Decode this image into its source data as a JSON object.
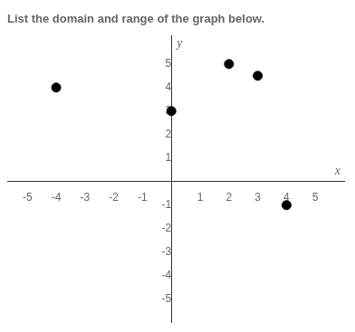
{
  "chart_data": {
    "type": "scatter",
    "title": "List the domain and range of the graph below.",
    "x": [
      -4,
      0,
      2,
      3,
      4
    ],
    "values": [
      4,
      3,
      5,
      4.5,
      -1
    ],
    "color": "black",
    "xlim": [
      -5.7,
      6.0
    ],
    "ylim": [
      -6.0,
      6.2
    ],
    "xticks": [
      -5,
      -4,
      -3,
      -2,
      -1,
      1,
      2,
      3,
      4,
      5
    ],
    "yticks": [
      -5,
      -4,
      -3,
      -2,
      -1,
      1,
      2,
      3,
      4,
      5
    ],
    "xlabel": "x",
    "ylabel": "y",
    "grid": false
  }
}
